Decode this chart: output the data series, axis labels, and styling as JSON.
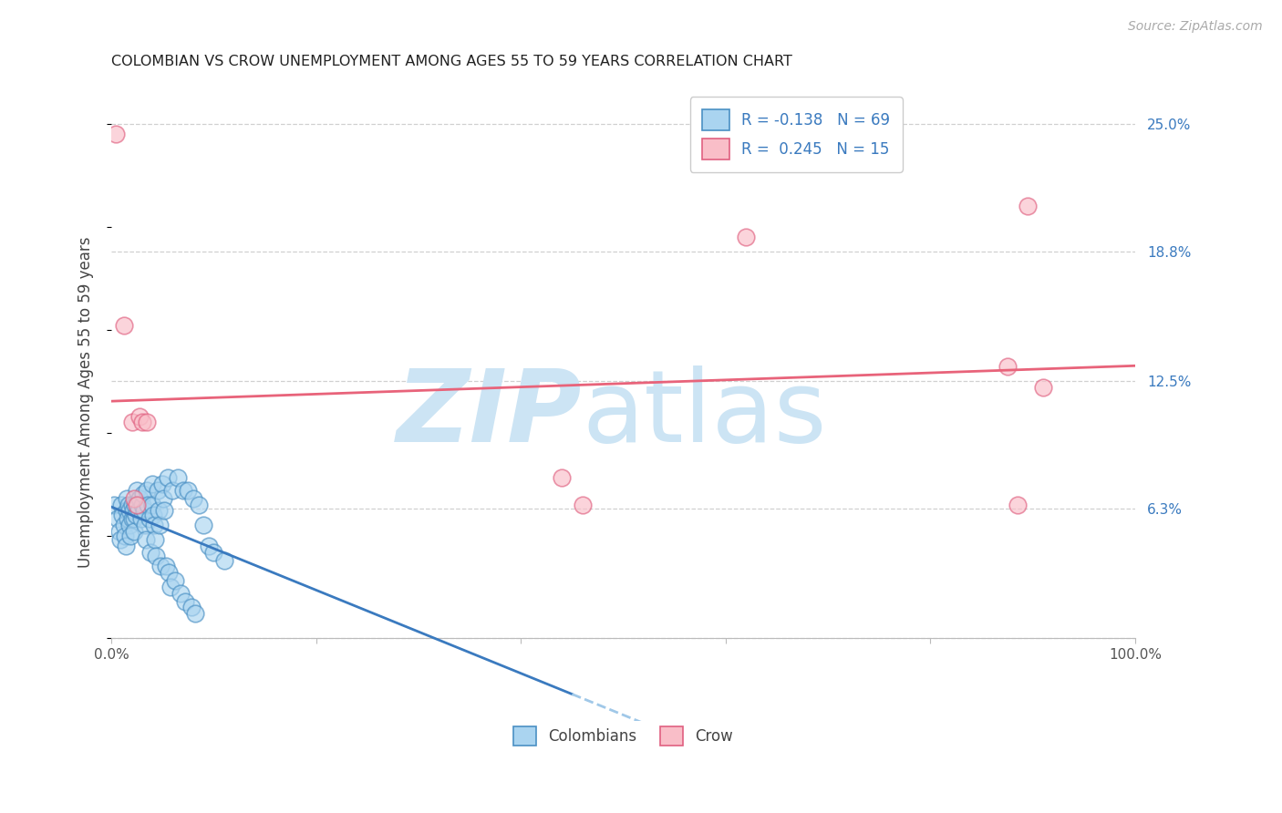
{
  "title": "COLOMBIAN VS CROW UNEMPLOYMENT AMONG AGES 55 TO 59 YEARS CORRELATION CHART",
  "source": "Source: ZipAtlas.com",
  "ylabel": "Unemployment Among Ages 55 to 59 years",
  "xlim": [
    0.0,
    1.0
  ],
  "ylim": [
    -0.04,
    0.27
  ],
  "colombian_R": -0.138,
  "colombian_N": 69,
  "crow_R": 0.245,
  "crow_N": 15,
  "blue_face": "#aad4f0",
  "blue_edge": "#4a90c4",
  "pink_face": "#f9bec8",
  "pink_edge": "#e06080",
  "trend_blue_solid": "#3a7abf",
  "trend_blue_dash": "#a0c8e8",
  "trend_pink": "#e8637a",
  "background": "#ffffff",
  "grid_color": "#d0d0d0",
  "watermark_zip_color": "#cce4f4",
  "watermark_atlas_color": "#cce4f4",
  "colombian_x": [
    0.003,
    0.006,
    0.008,
    0.009,
    0.01,
    0.011,
    0.012,
    0.013,
    0.014,
    0.015,
    0.015,
    0.016,
    0.017,
    0.018,
    0.018,
    0.019,
    0.02,
    0.02,
    0.021,
    0.022,
    0.022,
    0.023,
    0.024,
    0.025,
    0.026,
    0.027,
    0.028,
    0.029,
    0.03,
    0.031,
    0.032,
    0.033,
    0.034,
    0.035,
    0.036,
    0.037,
    0.038,
    0.04,
    0.04,
    0.041,
    0.042,
    0.043,
    0.044,
    0.045,
    0.046,
    0.047,
    0.048,
    0.05,
    0.051,
    0.052,
    0.053,
    0.055,
    0.056,
    0.058,
    0.06,
    0.062,
    0.065,
    0.068,
    0.07,
    0.072,
    0.075,
    0.078,
    0.08,
    0.082,
    0.085,
    0.09,
    0.095,
    0.1,
    0.11
  ],
  "colombian_y": [
    0.065,
    0.058,
    0.052,
    0.048,
    0.065,
    0.06,
    0.055,
    0.05,
    0.045,
    0.068,
    0.062,
    0.058,
    0.065,
    0.062,
    0.055,
    0.05,
    0.065,
    0.058,
    0.062,
    0.058,
    0.052,
    0.065,
    0.06,
    0.072,
    0.065,
    0.062,
    0.068,
    0.058,
    0.065,
    0.07,
    0.062,
    0.055,
    0.048,
    0.072,
    0.065,
    0.058,
    0.042,
    0.075,
    0.065,
    0.06,
    0.055,
    0.048,
    0.04,
    0.072,
    0.062,
    0.055,
    0.035,
    0.075,
    0.068,
    0.062,
    0.035,
    0.078,
    0.032,
    0.025,
    0.072,
    0.028,
    0.078,
    0.022,
    0.072,
    0.018,
    0.072,
    0.015,
    0.068,
    0.012,
    0.065,
    0.055,
    0.045,
    0.042,
    0.038
  ],
  "crow_x": [
    0.004,
    0.012,
    0.02,
    0.022,
    0.025,
    0.028,
    0.03,
    0.035,
    0.44,
    0.46,
    0.62,
    0.875,
    0.885,
    0.895,
    0.91
  ],
  "crow_y": [
    0.245,
    0.152,
    0.105,
    0.068,
    0.065,
    0.108,
    0.105,
    0.105,
    0.078,
    0.065,
    0.195,
    0.132,
    0.065,
    0.21,
    0.122
  ]
}
